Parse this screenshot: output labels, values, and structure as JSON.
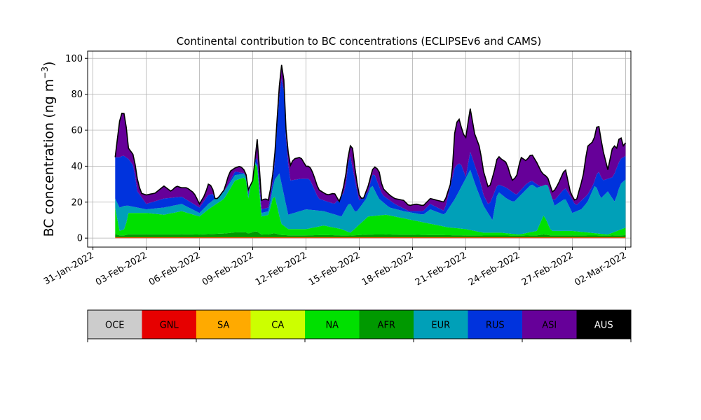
{
  "chart_data": {
    "type": "area",
    "stacked": true,
    "title": "Continental contribution to BC concentrations (ECLIPSEv6 and CAMS)",
    "ylabel_main": "BC concentration (ng m",
    "ylabel_sup": "−3",
    "ylabel_close": ")",
    "xlabel": "",
    "ylim": [
      -5,
      104
    ],
    "xlim_days": [
      -0.3,
      30.3
    ],
    "grid": true,
    "yticks": [
      0,
      20,
      40,
      60,
      80,
      100
    ],
    "ytick_labels": [
      "0",
      "20",
      "40",
      "60",
      "80",
      "100"
    ],
    "xticks_days": [
      0,
      3,
      6,
      9,
      12,
      15,
      18,
      21,
      24,
      27,
      30
    ],
    "xtick_labels": [
      "31-Jan-2022",
      "03-Feb-2022",
      "06-Feb-2022",
      "09-Feb-2022",
      "12-Feb-2022",
      "15-Feb-2022",
      "18-Feb-2022",
      "21-Feb-2022",
      "24-Feb-2022",
      "27-Feb-2022",
      "02-Mar-2022"
    ],
    "x_start_day": 1.25,
    "x_step_day": 0.125,
    "total_keypoints": [
      [
        1.25,
        45
      ],
      [
        1.5,
        65
      ],
      [
        1.7,
        72
      ],
      [
        1.85,
        64
      ],
      [
        2.0,
        50
      ],
      [
        2.3,
        46
      ],
      [
        2.5,
        33
      ],
      [
        2.7,
        25
      ],
      [
        3.0,
        24
      ],
      [
        3.5,
        25
      ],
      [
        4.0,
        29
      ],
      [
        4.4,
        26
      ],
      [
        4.7,
        29
      ],
      [
        5.0,
        28
      ],
      [
        5.3,
        28
      ],
      [
        5.7,
        25
      ],
      [
        6.0,
        19
      ],
      [
        6.3,
        24
      ],
      [
        6.5,
        30
      ],
      [
        6.7,
        29
      ],
      [
        6.9,
        21
      ],
      [
        7.1,
        23
      ],
      [
        7.4,
        27
      ],
      [
        7.7,
        37
      ],
      [
        8.0,
        39
      ],
      [
        8.3,
        40
      ],
      [
        8.6,
        37
      ],
      [
        8.75,
        27
      ],
      [
        9.0,
        32
      ],
      [
        9.25,
        55
      ],
      [
        9.4,
        36
      ],
      [
        9.5,
        21
      ],
      [
        9.7,
        22
      ],
      [
        9.9,
        21
      ],
      [
        10.2,
        40
      ],
      [
        10.45,
        78
      ],
      [
        10.6,
        98
      ],
      [
        10.75,
        88
      ],
      [
        10.9,
        55
      ],
      [
        11.1,
        40
      ],
      [
        11.3,
        44
      ],
      [
        11.7,
        45
      ],
      [
        12.0,
        40
      ],
      [
        12.2,
        40
      ],
      [
        12.4,
        36
      ],
      [
        12.7,
        27
      ],
      [
        13.2,
        24
      ],
      [
        13.6,
        25
      ],
      [
        13.9,
        20
      ],
      [
        14.2,
        32
      ],
      [
        14.45,
        51
      ],
      [
        14.6,
        52
      ],
      [
        14.8,
        35
      ],
      [
        15.0,
        24
      ],
      [
        15.2,
        21
      ],
      [
        15.5,
        29
      ],
      [
        15.8,
        40
      ],
      [
        16.1,
        38
      ],
      [
        16.3,
        28
      ],
      [
        16.7,
        24
      ],
      [
        17.0,
        22
      ],
      [
        17.5,
        21
      ],
      [
        17.8,
        18
      ],
      [
        18.2,
        19
      ],
      [
        18.6,
        18
      ],
      [
        19.0,
        22
      ],
      [
        19.4,
        21
      ],
      [
        19.8,
        20
      ],
      [
        20.2,
        32
      ],
      [
        20.4,
        62
      ],
      [
        20.6,
        67
      ],
      [
        20.85,
        58
      ],
      [
        21.0,
        56
      ],
      [
        21.25,
        72
      ],
      [
        21.5,
        58
      ],
      [
        21.8,
        50
      ],
      [
        22.0,
        37
      ],
      [
        22.3,
        27
      ],
      [
        22.6,
        37
      ],
      [
        22.8,
        46
      ],
      [
        23.0,
        44
      ],
      [
        23.3,
        42
      ],
      [
        23.6,
        32
      ],
      [
        23.85,
        34
      ],
      [
        24.1,
        45
      ],
      [
        24.4,
        43
      ],
      [
        24.7,
        47
      ],
      [
        25.0,
        42
      ],
      [
        25.3,
        36
      ],
      [
        25.6,
        34
      ],
      [
        25.9,
        25
      ],
      [
        26.2,
        30
      ],
      [
        26.6,
        39
      ],
      [
        26.9,
        25
      ],
      [
        27.2,
        20
      ],
      [
        27.6,
        34
      ],
      [
        27.85,
        51
      ],
      [
        28.2,
        54
      ],
      [
        28.45,
        65
      ],
      [
        28.7,
        50
      ],
      [
        29.0,
        38
      ],
      [
        29.3,
        52
      ],
      [
        29.5,
        50
      ],
      [
        29.7,
        58
      ],
      [
        29.85,
        51
      ],
      [
        30.0,
        53
      ],
      [
        30.05,
        53
      ]
    ],
    "region_colors": {
      "OCE": "#cccccc",
      "GNL": "#e60000",
      "SA": "#ffaa00",
      "CA": "#ccff00",
      "NA": "#00e000",
      "AFR": "#009900",
      "EUR": "#00a0b8",
      "RUS": "#0033dd",
      "ASI": "#660099",
      "AUS": "#000000"
    },
    "stack_order": [
      "GNL",
      "SA",
      "AFR",
      "NA",
      "EUR",
      "RUS",
      "ASI",
      "AUS"
    ],
    "outline_color": "#000000",
    "legend": {
      "placement": "below",
      "entries": [
        {
          "label": "OCE",
          "color": "#cccccc",
          "text_color": "#000000"
        },
        {
          "label": "GNL",
          "color": "#e60000",
          "text_color": "#000000"
        },
        {
          "label": "SA",
          "color": "#ffaa00",
          "text_color": "#000000"
        },
        {
          "label": "CA",
          "color": "#ccff00",
          "text_color": "#000000"
        },
        {
          "label": "NA",
          "color": "#00e000",
          "text_color": "#000000"
        },
        {
          "label": "AFR",
          "color": "#009900",
          "text_color": "#000000"
        },
        {
          "label": "EUR",
          "color": "#00a0b8",
          "text_color": "#000000"
        },
        {
          "label": "RUS",
          "color": "#0033dd",
          "text_color": "#000000"
        },
        {
          "label": "ASI",
          "color": "#660099",
          "text_color": "#000000"
        },
        {
          "label": "AUS",
          "color": "#000000",
          "text_color": "#ffffff"
        }
      ]
    }
  }
}
